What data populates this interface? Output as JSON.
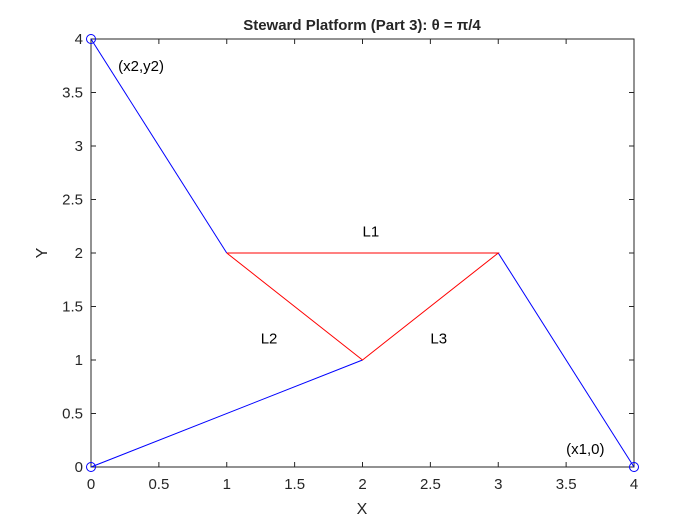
{
  "chart_data": {
    "type": "line",
    "title": "Steward Platform (Part 3):  θ = π/4",
    "xlabel": "X",
    "ylabel": "Y",
    "xlim": [
      0,
      4
    ],
    "ylim": [
      0,
      4
    ],
    "grid": false,
    "xticks": [
      0,
      0.5,
      1,
      1.5,
      2,
      2.5,
      3,
      3.5,
      4
    ],
    "xtick_labels": [
      "0",
      "0.5",
      "1",
      "1.5",
      "2",
      "2.5",
      "3",
      "3.5",
      "4"
    ],
    "yticks": [
      0,
      0.5,
      1,
      1.5,
      2,
      2.5,
      3,
      3.5,
      4
    ],
    "ytick_labels": [
      "0",
      "0.5",
      "1",
      "1.5",
      "2",
      "2.5",
      "3",
      "3.5",
      "4"
    ],
    "colors": {
      "struts": "#0000ff",
      "platform": "#ff0000",
      "anchors": "#0000ff",
      "axes": "#262626"
    },
    "struts": [
      {
        "x": [
          0,
          2
        ],
        "y": [
          0,
          1
        ]
      },
      {
        "x": [
          4,
          3
        ],
        "y": [
          0,
          2
        ]
      },
      {
        "x": [
          0,
          1
        ],
        "y": [
          4,
          2
        ]
      }
    ],
    "platform": {
      "x": [
        1,
        3,
        2,
        1
      ],
      "y": [
        2,
        2,
        1,
        2
      ]
    },
    "anchors": {
      "x": [
        0,
        4,
        0
      ],
      "y": [
        0,
        0,
        4
      ]
    },
    "annotations": [
      {
        "text": "(x2,y2)",
        "x": 0.2,
        "y": 3.75
      },
      {
        "text": "L1",
        "x": 2.0,
        "y": 2.2
      },
      {
        "text": "L2",
        "x": 1.25,
        "y": 1.2
      },
      {
        "text": "L3",
        "x": 2.5,
        "y": 1.2
      },
      {
        "text": "(x1,0)",
        "x": 3.5,
        "y": 0.17
      }
    ]
  }
}
